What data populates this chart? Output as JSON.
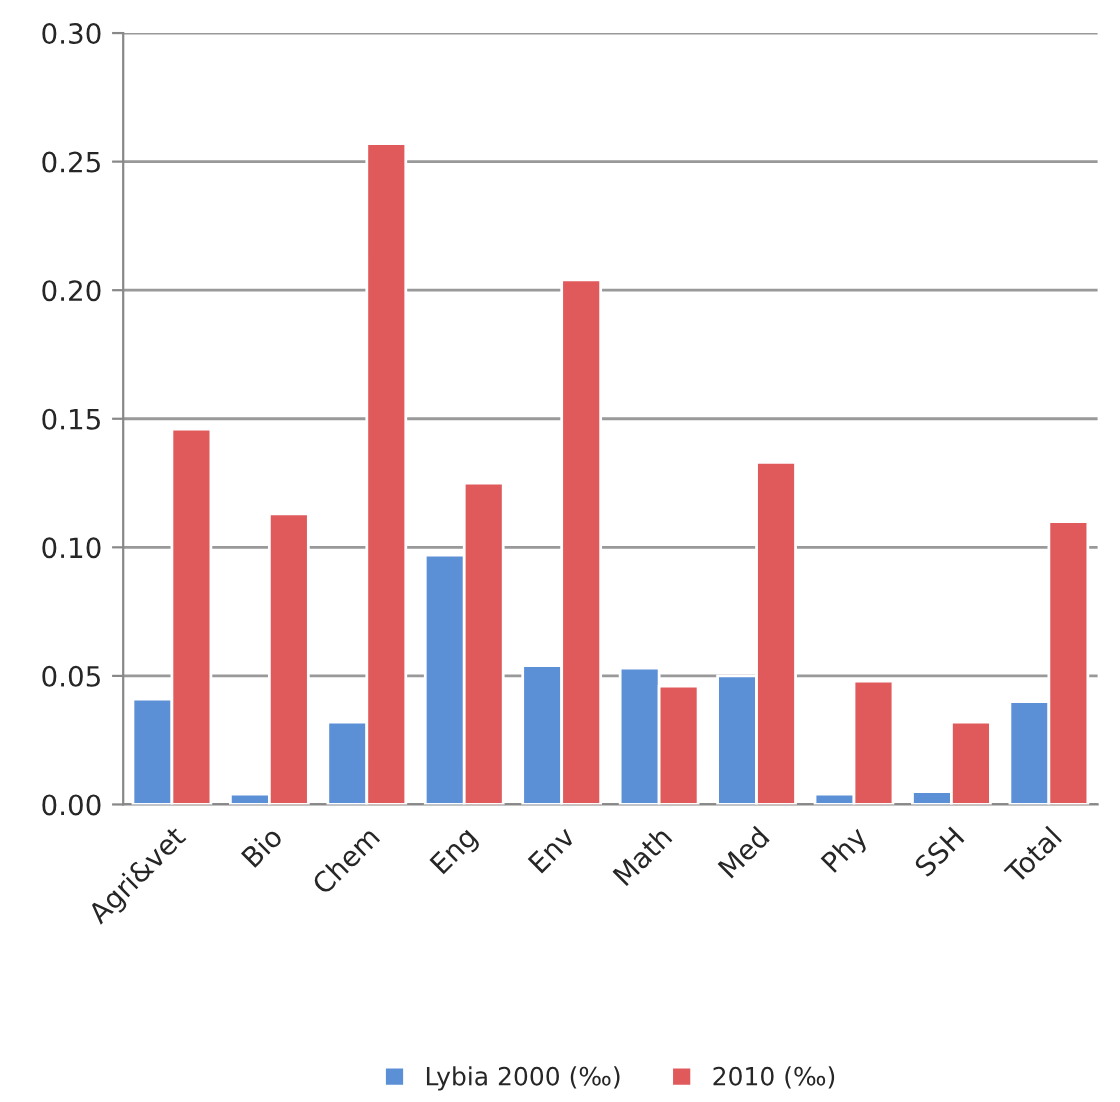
{
  "chart_data": {
    "type": "bar",
    "categories": [
      "Agri&vet",
      "Bio",
      "Chem",
      "Eng",
      "Env",
      "Math",
      "Med",
      "Phy",
      "SSH",
      "Total"
    ],
    "series": [
      {
        "name": "Lybia 2000 (‰)",
        "color": "#5b8fd6",
        "values": [
          0.041,
          0.004,
          0.032,
          0.097,
          0.054,
          0.053,
          0.05,
          0.004,
          0.005,
          0.04
        ]
      },
      {
        "name": "2010 (‰)",
        "color": "#e05a5c",
        "values": [
          0.146,
          0.113,
          0.257,
          0.125,
          0.204,
          0.046,
          0.133,
          0.048,
          0.032,
          0.11
        ]
      }
    ],
    "ylim": [
      0,
      0.3
    ],
    "yticks": [
      {
        "value": 0,
        "label": "0.00"
      },
      {
        "value": 0.05,
        "label": "0.05"
      },
      {
        "value": 0.1,
        "label": "0.10"
      },
      {
        "value": 0.15,
        "label": "0.15"
      },
      {
        "value": 0.2,
        "label": "0.20"
      },
      {
        "value": 0.25,
        "label": "0.25"
      },
      {
        "value": 0.3,
        "label": "0.30"
      }
    ],
    "grid": "y",
    "legend": "bottom"
  }
}
